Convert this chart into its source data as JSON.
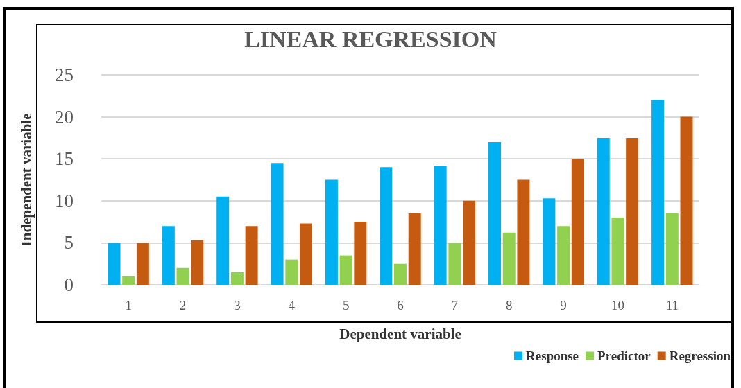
{
  "chart_data": {
    "type": "bar",
    "title": "LINEAR REGRESSION",
    "xlabel": "Dependent variable",
    "ylabel": "Independent variable",
    "categories": [
      "1",
      "2",
      "3",
      "4",
      "5",
      "6",
      "7",
      "8",
      "9",
      "10",
      "11"
    ],
    "series": [
      {
        "name": "Response",
        "color": "#00b0f0",
        "values": [
          5,
          7,
          10.5,
          14.5,
          12.5,
          14,
          14.2,
          17,
          10.3,
          17.5,
          22
        ]
      },
      {
        "name": "Predictor",
        "color": "#92d050",
        "values": [
          1,
          2,
          1.5,
          3,
          3.5,
          2.5,
          5,
          6.2,
          7,
          8,
          8.5
        ]
      },
      {
        "name": "Regression",
        "color": "#c55a11",
        "values": [
          5,
          5.3,
          7,
          7.3,
          7.5,
          8.5,
          10,
          12.5,
          15,
          17.5,
          20
        ]
      }
    ],
    "ylim": [
      0,
      25
    ],
    "yticks": [
      0,
      5,
      10,
      15,
      20,
      25
    ],
    "grid": "y",
    "legend": "bottom right"
  }
}
